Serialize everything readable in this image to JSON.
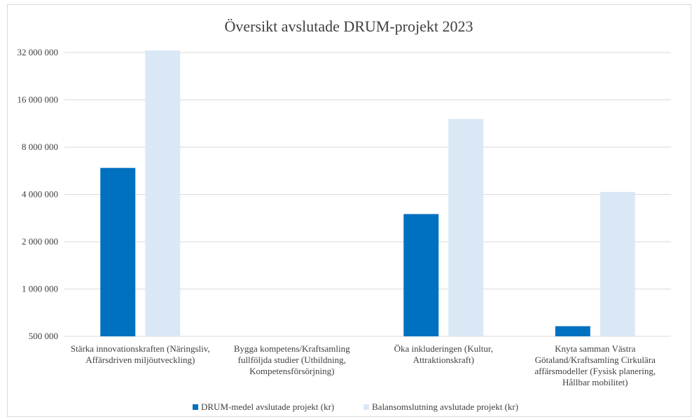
{
  "chart_data": {
    "type": "bar",
    "title": "Översikt avslutade DRUM-projekt 2023",
    "xlabel": "",
    "ylabel": "",
    "y_scale": "log2",
    "ylim": [
      500000,
      32000000
    ],
    "y_ticks": [
      "500 000",
      "1 000 000",
      "2 000 000",
      "4 000 000",
      "8 000 000",
      "16 000 000",
      "32 000 000"
    ],
    "y_tick_values": [
      500000,
      1000000,
      2000000,
      4000000,
      8000000,
      16000000,
      32000000
    ],
    "grid": true,
    "legend_position": "bottom",
    "categories": [
      [
        "Stärka innovationskraften (Näringsliv,",
        "Affärsdriven miljöutveckling)"
      ],
      [
        "Bygga kompetens/Kraftsamling",
        "fullföljda studier (Utbildning,",
        "Kompetensförsörjning)"
      ],
      [
        "Öka inkluderingen (Kultur,",
        "Attraktionskraft)"
      ],
      [
        "Knyta samman Västra",
        "Götaland/Kraftsamling Cirkulära",
        "affärsmodeller (Fysisk planering,",
        "Hållbar mobilitet)"
      ]
    ],
    "series": [
      {
        "name": "DRUM-medel avslutade projekt (kr)",
        "color": "#0070c0",
        "values": [
          5900000,
          null,
          3000000,
          580000
        ]
      },
      {
        "name": "Balansomslutning avslutade projekt (kr)",
        "color": "#dae8f6",
        "values": [
          33000000,
          null,
          12100000,
          4150000
        ]
      }
    ]
  }
}
